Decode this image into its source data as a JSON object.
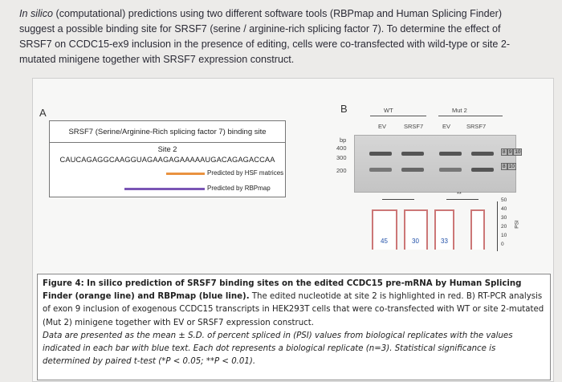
{
  "intro": {
    "lead": "In silico",
    "text": " (computational) predictions using two different software tools (RBPmap and Human Splicing Finder) suggest a possible binding site for SRSF7 (serine / arginine-rich splicing factor 7). To determine the effect of SRSF7 on CCDC15-ex9 inclusion in the presence of editing, cells were co-transfected with wild-type or site 2-mutated minigene together with SRSF7 expression construct."
  },
  "panel_a": {
    "label": "A",
    "header": "SRSF7 (Serine/Arginine-Rich splicing factor 7) binding site",
    "site": "Site 2",
    "sequence": "CAUCAGAGGCAAGGUAGAAGAGAAAAAUGACAGAGACCAA",
    "legend": [
      "Predicted by HSF matrices",
      "Predicted by RBPmap"
    ]
  },
  "panel_b": {
    "label": "B",
    "groups": [
      "WT",
      "Mut 2"
    ],
    "lanes": [
      "EV",
      "SRSF7",
      "EV",
      "SRSF7"
    ],
    "bp_label": "bp",
    "markers": [
      "400",
      "300",
      "200"
    ],
    "exons_full": [
      "8",
      "9",
      "10"
    ],
    "exons_skip": [
      "8",
      "10"
    ],
    "significance": "**",
    "bar_labels": [
      "45",
      "30",
      "33"
    ],
    "axis_ticks": [
      "50",
      "40",
      "30",
      "20",
      "10",
      "0"
    ],
    "axis_title": "PSI"
  },
  "caption": {
    "title": "Figure 4: In silico prediction of SRSF7 binding sites on the edited CCDC15 pre-mRNA by Human Splicing Finder (orange line) and RBPmap (blue line).",
    "body": " The edited nucleotide at site 2 is highlighted in red. B) RT-PCR analysis of exon 9 inclusion of exogenous CCDC15 transcripts in HEK293T cells that were co-transfected with WT or site 2-mutated (Mut 2) minigene together with EV or SRSF7 expression construct.",
    "stats": "Data are presented as the mean ± S.D. of percent spliced in (PSI) values from biological replicates with the values indicated in each bar with blue text. Each dot represents a biological replicate (n=3). Statistical significance is determined by paired t-test (*P < 0.05; **P < 0.01)."
  }
}
